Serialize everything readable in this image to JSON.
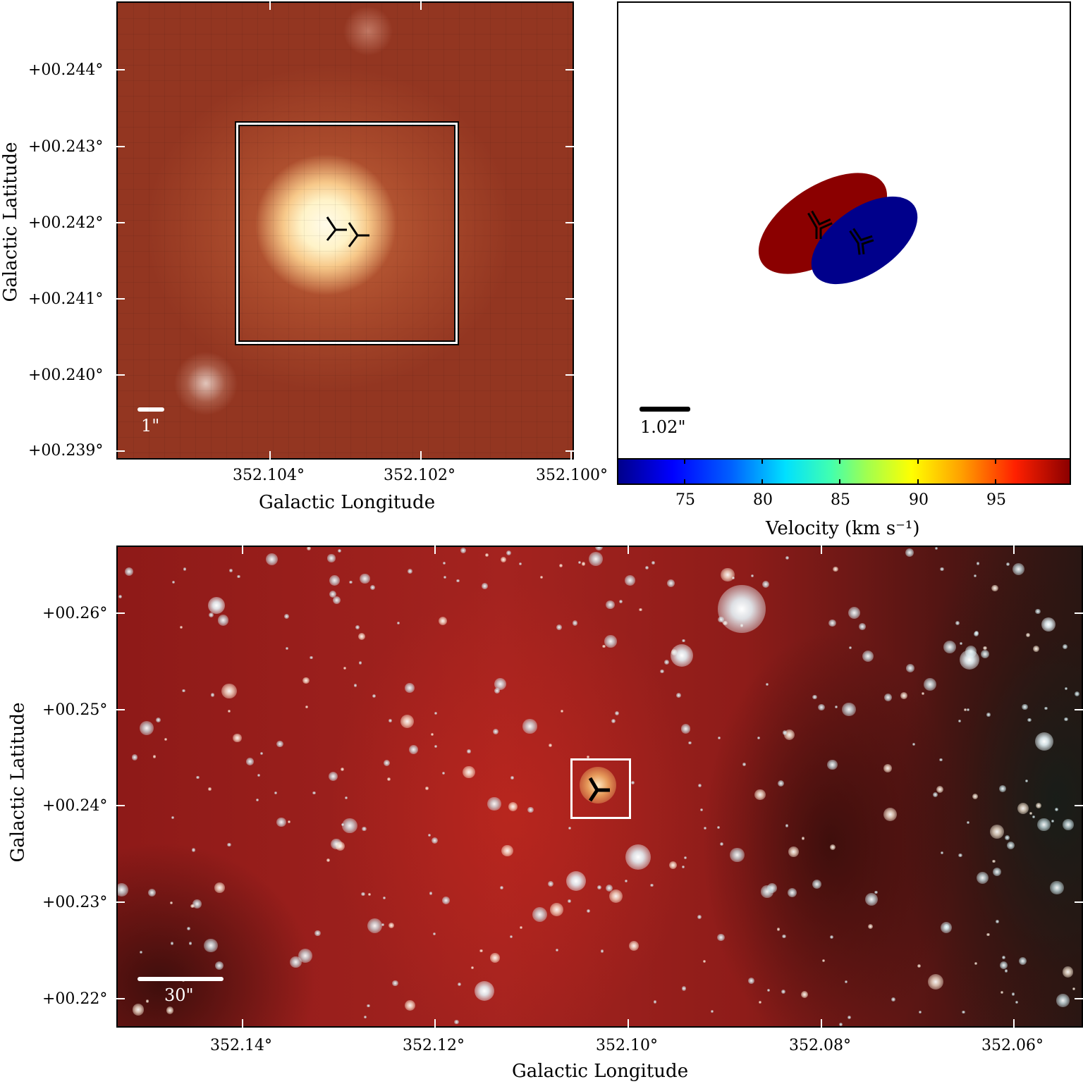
{
  "top_left_panel": {
    "y_ticks": [
      "+00.244°",
      "+00.243°",
      "+00.242°",
      "+00.241°",
      "+00.240°",
      "+00.239°"
    ],
    "x_ticks": [
      "352.104°",
      "352.102°",
      "352.100°"
    ],
    "x_title": "Galactic Longitude",
    "y_title": "Galactic Latitude",
    "scale_bar": "1\""
  },
  "top_right_panel": {
    "scale_bar": "1.02\"",
    "colorbar_ticks": [
      "75",
      "80",
      "85",
      "90",
      "95"
    ],
    "colorbar_title": "Velocity (km s⁻¹)",
    "colors": {
      "redshifted": "#8b0000",
      "blueshifted": "#00008b"
    }
  },
  "bottom_panel": {
    "y_ticks": [
      "+00.26°",
      "+00.25°",
      "+00.24°",
      "+00.23°",
      "+00.22°"
    ],
    "x_ticks": [
      "352.14°",
      "352.12°",
      "352.10°",
      "352.08°",
      "352.06°"
    ],
    "x_title": "Galactic Longitude",
    "y_title": "Galactic Latitude",
    "scale_bar": "30\""
  }
}
